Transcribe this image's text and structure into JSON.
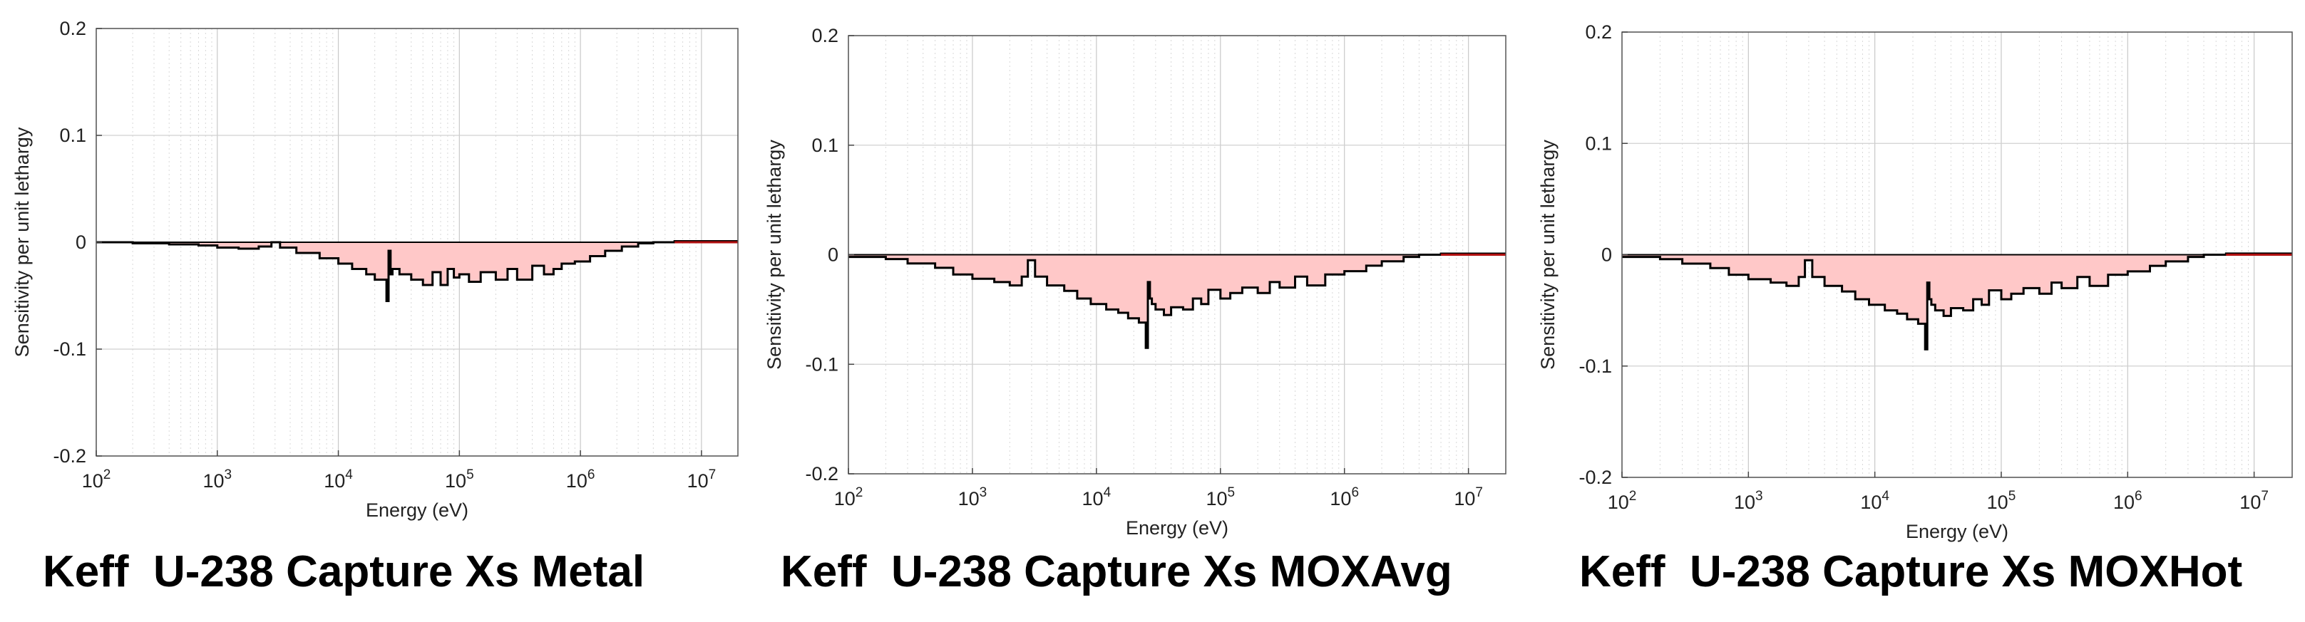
{
  "chart_data": [
    {
      "type": "area",
      "title": "Keff  U-238 Capture Xs Metal",
      "xlabel": "Energy (eV)",
      "ylabel": "Sensitivity per unit lethargy",
      "xscale": "log",
      "xlim": [
        100,
        20000000
      ],
      "ylim": [
        -0.2,
        0.2
      ],
      "xticks": [
        100,
        1000,
        10000,
        100000,
        1000000,
        10000000
      ],
      "xtick_labels": [
        "10^2",
        "10^3",
        "10^4",
        "10^5",
        "10^6",
        "10^7"
      ],
      "yticks": [
        -0.2,
        -0.1,
        0,
        0.1,
        0.2
      ],
      "ytick_labels": [
        "-0.2",
        "-0.1",
        "0",
        "0.1",
        "0.2"
      ],
      "grid": true,
      "fill_color": "#ffc8c8",
      "line_color": "#000000",
      "series": [
        {
          "x": [
            100,
            200,
            400,
            700,
            1000,
            1500,
            2200,
            2800,
            3300,
            4500,
            7000,
            10000,
            13000,
            17000,
            20000,
            25000,
            26000,
            27000,
            28000,
            32000,
            40000,
            50000,
            60000,
            70000,
            80000,
            90000,
            100000,
            120000,
            150000,
            200000,
            250000,
            300000,
            400000,
            500000,
            600000,
            700000,
            900000,
            1200000,
            1600000,
            2200000,
            3000000,
            4000000,
            6000000,
            10000000,
            20000000
          ],
          "y": [
            0,
            -0.001,
            -0.002,
            -0.003,
            -0.005,
            -0.006,
            -0.004,
            0,
            -0.005,
            -0.01,
            -0.015,
            -0.02,
            -0.025,
            -0.03,
            -0.035,
            -0.055,
            -0.008,
            -0.03,
            -0.025,
            -0.03,
            -0.035,
            -0.04,
            -0.028,
            -0.04,
            -0.025,
            -0.033,
            -0.03,
            -0.037,
            -0.028,
            -0.035,
            -0.025,
            -0.035,
            -0.022,
            -0.03,
            -0.025,
            -0.02,
            -0.018,
            -0.013,
            -0.008,
            -0.004,
            -0.001,
            0,
            0.001,
            0.001,
            0.001
          ]
        }
      ]
    },
    {
      "type": "area",
      "title": "Keff  U-238 Capture Xs MOXAvg",
      "xlabel": "Energy (eV)",
      "ylabel": "Sensitivity per unit lethargy",
      "xscale": "log",
      "xlim": [
        100,
        20000000
      ],
      "ylim": [
        -0.2,
        0.2
      ],
      "xticks": [
        100,
        1000,
        10000,
        100000,
        1000000,
        10000000
      ],
      "xtick_labels": [
        "10^2",
        "10^3",
        "10^4",
        "10^5",
        "10^6",
        "10^7"
      ],
      "yticks": [
        -0.2,
        -0.1,
        0,
        0.1,
        0.2
      ],
      "ytick_labels": [
        "-0.2",
        "-0.1",
        "0",
        "0.1",
        "0.2"
      ],
      "grid": true,
      "fill_color": "#ffc8c8",
      "line_color": "#000000",
      "series": [
        {
          "x": [
            100,
            200,
            300,
            500,
            700,
            1000,
            1500,
            2000,
            2500,
            2800,
            3200,
            4000,
            5500,
            7000,
            9000,
            12000,
            15000,
            18000,
            22000,
            25000,
            26000,
            27000,
            28000,
            30000,
            35000,
            40000,
            50000,
            60000,
            70000,
            80000,
            100000,
            120000,
            150000,
            200000,
            250000,
            300000,
            400000,
            500000,
            700000,
            1000000,
            1500000,
            2000000,
            3000000,
            4000000,
            6000000,
            10000000,
            20000000
          ],
          "y": [
            -0.002,
            -0.004,
            -0.008,
            -0.012,
            -0.018,
            -0.022,
            -0.025,
            -0.028,
            -0.02,
            -0.005,
            -0.02,
            -0.028,
            -0.033,
            -0.04,
            -0.045,
            -0.05,
            -0.053,
            -0.058,
            -0.062,
            -0.085,
            -0.025,
            -0.04,
            -0.045,
            -0.05,
            -0.055,
            -0.048,
            -0.05,
            -0.04,
            -0.045,
            -0.032,
            -0.04,
            -0.035,
            -0.03,
            -0.035,
            -0.025,
            -0.03,
            -0.02,
            -0.028,
            -0.018,
            -0.015,
            -0.01,
            -0.006,
            -0.002,
            0,
            0.001,
            0.001,
            0.001
          ]
        }
      ]
    },
    {
      "type": "area",
      "title": "Keff  U-238 Capture Xs MOXHot",
      "xlabel": "Energy (eV)",
      "ylabel": "Sensitivity per unit lethargy",
      "xscale": "log",
      "xlim": [
        100,
        20000000
      ],
      "ylim": [
        -0.2,
        0.2
      ],
      "xticks": [
        100,
        1000,
        10000,
        100000,
        1000000,
        10000000
      ],
      "xtick_labels": [
        "10^2",
        "10^3",
        "10^4",
        "10^5",
        "10^6",
        "10^7"
      ],
      "yticks": [
        -0.2,
        -0.1,
        0,
        0.1,
        0.2
      ],
      "ytick_labels": [
        "-0.2",
        "-0.1",
        "0",
        "0.1",
        "0.2"
      ],
      "grid": true,
      "fill_color": "#ffc8c8",
      "line_color": "#000000",
      "series": [
        {
          "x": [
            100,
            200,
            300,
            500,
            700,
            1000,
            1500,
            2000,
            2500,
            2800,
            3200,
            4000,
            5500,
            7000,
            9000,
            12000,
            15000,
            18000,
            22000,
            25000,
            26000,
            27000,
            28000,
            30000,
            35000,
            40000,
            50000,
            60000,
            70000,
            80000,
            100000,
            120000,
            150000,
            200000,
            250000,
            300000,
            400000,
            500000,
            700000,
            1000000,
            1500000,
            2000000,
            3000000,
            4000000,
            6000000,
            10000000,
            20000000
          ],
          "y": [
            -0.002,
            -0.004,
            -0.008,
            -0.012,
            -0.018,
            -0.022,
            -0.025,
            -0.028,
            -0.02,
            -0.005,
            -0.02,
            -0.028,
            -0.033,
            -0.04,
            -0.045,
            -0.05,
            -0.053,
            -0.058,
            -0.062,
            -0.085,
            -0.025,
            -0.04,
            -0.045,
            -0.05,
            -0.055,
            -0.048,
            -0.05,
            -0.04,
            -0.045,
            -0.032,
            -0.04,
            -0.035,
            -0.03,
            -0.035,
            -0.025,
            -0.03,
            -0.02,
            -0.028,
            -0.018,
            -0.015,
            -0.01,
            -0.006,
            -0.002,
            0,
            0.001,
            0.001,
            0.001
          ]
        }
      ]
    }
  ]
}
